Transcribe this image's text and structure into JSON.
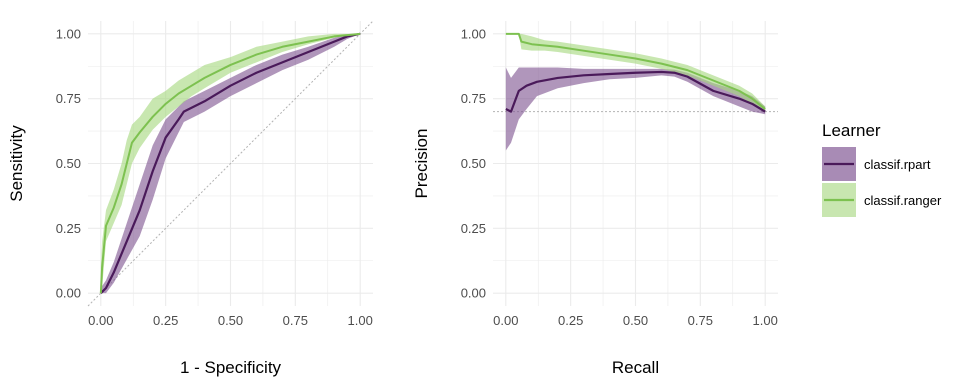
{
  "chart_data": [
    {
      "type": "line",
      "xlabel": "1 - Specificity",
      "ylabel": "Sensitivity",
      "xlim": [
        0,
        1
      ],
      "ylim": [
        0,
        1
      ],
      "x_ticks": [
        "0.00",
        "0.25",
        "0.50",
        "0.75",
        "1.00"
      ],
      "y_ticks": [
        "0.00",
        "0.25",
        "0.50",
        "0.75",
        "1.00"
      ],
      "grid": true,
      "reference_line": {
        "type": "diagonal",
        "style": "dotted",
        "color": "#b3b3b3"
      },
      "series": [
        {
          "name": "classif.rpart",
          "points": [
            [
              0,
              0
            ],
            [
              0.02,
              0.02
            ],
            [
              0.05,
              0.08
            ],
            [
              0.1,
              0.2
            ],
            [
              0.15,
              0.32
            ],
            [
              0.2,
              0.47
            ],
            [
              0.25,
              0.6
            ],
            [
              0.3,
              0.67
            ],
            [
              0.32,
              0.7
            ],
            [
              0.4,
              0.74
            ],
            [
              0.5,
              0.8
            ],
            [
              0.6,
              0.85
            ],
            [
              0.7,
              0.89
            ],
            [
              0.8,
              0.93
            ],
            [
              0.9,
              0.97
            ],
            [
              0.95,
              0.99
            ],
            [
              1.0,
              1.0
            ]
          ],
          "upper": [
            [
              0,
              0.02
            ],
            [
              0.02,
              0.05
            ],
            [
              0.05,
              0.12
            ],
            [
              0.1,
              0.27
            ],
            [
              0.15,
              0.42
            ],
            [
              0.2,
              0.57
            ],
            [
              0.25,
              0.67
            ],
            [
              0.3,
              0.72
            ],
            [
              0.32,
              0.74
            ],
            [
              0.4,
              0.78
            ],
            [
              0.5,
              0.83
            ],
            [
              0.6,
              0.88
            ],
            [
              0.7,
              0.92
            ],
            [
              0.8,
              0.95
            ],
            [
              0.9,
              0.985
            ],
            [
              0.95,
              0.995
            ],
            [
              1.0,
              1.0
            ]
          ],
          "lower": [
            [
              0,
              0.0
            ],
            [
              0.02,
              0.0
            ],
            [
              0.05,
              0.04
            ],
            [
              0.1,
              0.13
            ],
            [
              0.15,
              0.22
            ],
            [
              0.2,
              0.36
            ],
            [
              0.25,
              0.52
            ],
            [
              0.3,
              0.62
            ],
            [
              0.32,
              0.66
            ],
            [
              0.4,
              0.7
            ],
            [
              0.5,
              0.76
            ],
            [
              0.6,
              0.81
            ],
            [
              0.7,
              0.86
            ],
            [
              0.8,
              0.9
            ],
            [
              0.9,
              0.95
            ],
            [
              0.95,
              0.98
            ],
            [
              1.0,
              1.0
            ]
          ]
        },
        {
          "name": "classif.ranger",
          "points": [
            [
              0,
              0
            ],
            [
              0.005,
              0.1
            ],
            [
              0.02,
              0.26
            ],
            [
              0.05,
              0.33
            ],
            [
              0.08,
              0.42
            ],
            [
              0.1,
              0.5
            ],
            [
              0.12,
              0.58
            ],
            [
              0.15,
              0.62
            ],
            [
              0.2,
              0.68
            ],
            [
              0.25,
              0.73
            ],
            [
              0.3,
              0.77
            ],
            [
              0.35,
              0.8
            ],
            [
              0.4,
              0.83
            ],
            [
              0.5,
              0.88
            ],
            [
              0.6,
              0.92
            ],
            [
              0.7,
              0.95
            ],
            [
              0.8,
              0.97
            ],
            [
              0.9,
              0.99
            ],
            [
              1.0,
              1.0
            ]
          ],
          "upper": [
            [
              0,
              0.1
            ],
            [
              0.005,
              0.2
            ],
            [
              0.02,
              0.32
            ],
            [
              0.05,
              0.4
            ],
            [
              0.08,
              0.5
            ],
            [
              0.1,
              0.59
            ],
            [
              0.12,
              0.65
            ],
            [
              0.15,
              0.68
            ],
            [
              0.2,
              0.75
            ],
            [
              0.25,
              0.78
            ],
            [
              0.3,
              0.82
            ],
            [
              0.35,
              0.85
            ],
            [
              0.4,
              0.88
            ],
            [
              0.5,
              0.91
            ],
            [
              0.6,
              0.95
            ],
            [
              0.7,
              0.97
            ],
            [
              0.8,
              0.99
            ],
            [
              0.9,
              1.0
            ],
            [
              1.0,
              1.0
            ]
          ],
          "lower": [
            [
              0,
              0.0
            ],
            [
              0.005,
              0.02
            ],
            [
              0.02,
              0.2
            ],
            [
              0.05,
              0.27
            ],
            [
              0.08,
              0.34
            ],
            [
              0.1,
              0.42
            ],
            [
              0.12,
              0.5
            ],
            [
              0.15,
              0.56
            ],
            [
              0.2,
              0.63
            ],
            [
              0.25,
              0.68
            ],
            [
              0.3,
              0.72
            ],
            [
              0.35,
              0.76
            ],
            [
              0.4,
              0.79
            ],
            [
              0.5,
              0.85
            ],
            [
              0.6,
              0.89
            ],
            [
              0.7,
              0.93
            ],
            [
              0.8,
              0.96
            ],
            [
              0.9,
              0.985
            ],
            [
              1.0,
              1.0
            ]
          ]
        }
      ]
    },
    {
      "type": "line",
      "xlabel": "Recall",
      "ylabel": "Precision",
      "xlim": [
        0,
        1
      ],
      "ylim": [
        0,
        1
      ],
      "x_ticks": [
        "0.00",
        "0.25",
        "0.50",
        "0.75",
        "1.00"
      ],
      "y_ticks": [
        "0.00",
        "0.25",
        "0.50",
        "0.75",
        "1.00"
      ],
      "grid": true,
      "reference_line": {
        "type": "horizontal",
        "y": 0.7,
        "style": "dotted",
        "color": "#b3b3b3"
      },
      "series": [
        {
          "name": "classif.rpart",
          "points": [
            [
              0,
              0.71
            ],
            [
              0.02,
              0.7
            ],
            [
              0.05,
              0.78
            ],
            [
              0.08,
              0.8
            ],
            [
              0.12,
              0.815
            ],
            [
              0.2,
              0.83
            ],
            [
              0.3,
              0.84
            ],
            [
              0.4,
              0.845
            ],
            [
              0.5,
              0.85
            ],
            [
              0.6,
              0.853
            ],
            [
              0.65,
              0.85
            ],
            [
              0.7,
              0.835
            ],
            [
              0.8,
              0.78
            ],
            [
              0.9,
              0.75
            ],
            [
              0.95,
              0.73
            ],
            [
              1.0,
              0.7
            ]
          ],
          "upper": [
            [
              0,
              0.87
            ],
            [
              0.02,
              0.83
            ],
            [
              0.05,
              0.87
            ],
            [
              0.08,
              0.87
            ],
            [
              0.12,
              0.87
            ],
            [
              0.2,
              0.87
            ],
            [
              0.3,
              0.865
            ],
            [
              0.4,
              0.865
            ],
            [
              0.5,
              0.865
            ],
            [
              0.6,
              0.865
            ],
            [
              0.65,
              0.862
            ],
            [
              0.7,
              0.85
            ],
            [
              0.8,
              0.81
            ],
            [
              0.9,
              0.78
            ],
            [
              0.95,
              0.76
            ],
            [
              1.0,
              0.72
            ]
          ],
          "lower": [
            [
              0,
              0.55
            ],
            [
              0.02,
              0.58
            ],
            [
              0.05,
              0.67
            ],
            [
              0.08,
              0.71
            ],
            [
              0.12,
              0.76
            ],
            [
              0.2,
              0.79
            ],
            [
              0.3,
              0.81
            ],
            [
              0.4,
              0.825
            ],
            [
              0.5,
              0.83
            ],
            [
              0.6,
              0.84
            ],
            [
              0.65,
              0.835
            ],
            [
              0.7,
              0.815
            ],
            [
              0.8,
              0.76
            ],
            [
              0.9,
              0.72
            ],
            [
              0.95,
              0.7
            ],
            [
              1.0,
              0.69
            ]
          ]
        },
        {
          "name": "classif.ranger",
          "points": [
            [
              0,
              1.0
            ],
            [
              0.05,
              1.0
            ],
            [
              0.06,
              0.97
            ],
            [
              0.1,
              0.96
            ],
            [
              0.15,
              0.955
            ],
            [
              0.2,
              0.95
            ],
            [
              0.3,
              0.935
            ],
            [
              0.4,
              0.92
            ],
            [
              0.5,
              0.905
            ],
            [
              0.6,
              0.885
            ],
            [
              0.7,
              0.86
            ],
            [
              0.8,
              0.82
            ],
            [
              0.9,
              0.78
            ],
            [
              0.95,
              0.75
            ],
            [
              1.0,
              0.71
            ]
          ],
          "upper": [
            [
              0,
              1.0
            ],
            [
              0.05,
              1.0
            ],
            [
              0.06,
              1.0
            ],
            [
              0.1,
              0.99
            ],
            [
              0.15,
              0.975
            ],
            [
              0.2,
              0.97
            ],
            [
              0.3,
              0.955
            ],
            [
              0.4,
              0.94
            ],
            [
              0.5,
              0.925
            ],
            [
              0.6,
              0.905
            ],
            [
              0.7,
              0.88
            ],
            [
              0.8,
              0.84
            ],
            [
              0.9,
              0.8
            ],
            [
              0.95,
              0.77
            ],
            [
              1.0,
              0.72
            ]
          ],
          "lower": [
            [
              0,
              1.0
            ],
            [
              0.05,
              1.0
            ],
            [
              0.06,
              0.94
            ],
            [
              0.1,
              0.935
            ],
            [
              0.15,
              0.935
            ],
            [
              0.2,
              0.93
            ],
            [
              0.3,
              0.915
            ],
            [
              0.4,
              0.9
            ],
            [
              0.5,
              0.885
            ],
            [
              0.6,
              0.865
            ],
            [
              0.7,
              0.84
            ],
            [
              0.8,
              0.8
            ],
            [
              0.9,
              0.76
            ],
            [
              0.95,
              0.73
            ],
            [
              1.0,
              0.7
            ]
          ]
        }
      ]
    }
  ],
  "legend": {
    "title": "Learner",
    "placement": "right",
    "items": [
      {
        "label": "classif.rpart",
        "line_color": "#4a1a5a",
        "fill_color": "#9b75a8"
      },
      {
        "label": "classif.ranger",
        "line_color": "#7dc150",
        "fill_color": "#bde3a0"
      }
    ]
  }
}
